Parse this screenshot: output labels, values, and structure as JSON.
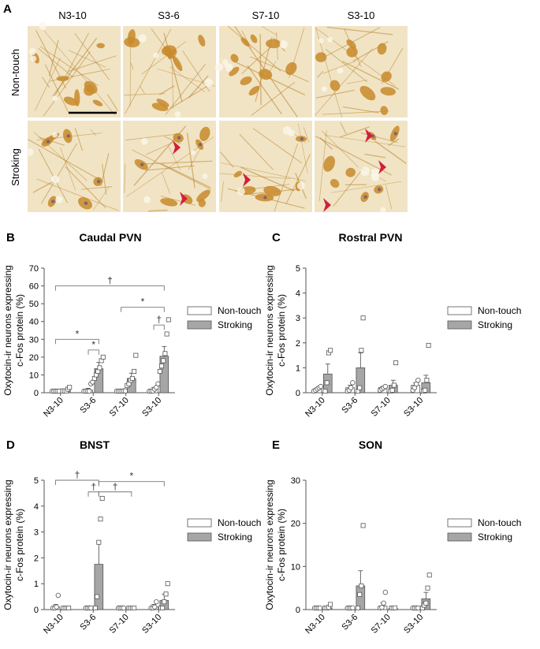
{
  "panel_a": {
    "letter": "A",
    "columns": [
      "N3-10",
      "S3-6",
      "S7-10",
      "S3-10"
    ],
    "rows": [
      "Non-touch",
      "Stroking"
    ]
  },
  "legend_labels": [
    "Non-touch",
    "Stroking"
  ],
  "colors": {
    "bar_nontouch": "#ffffff",
    "bar_stroking": "#a6a6a6",
    "axis": "#555555",
    "arrowhead": "#d0203a",
    "tissue": "#f1e4c4",
    "cell": "#c8892c"
  },
  "chart_data": [
    {
      "letter": "B",
      "type": "bar",
      "title": "Caudal PVN",
      "ylabel": "Oxytocin-ir neurons expressing c-Fos protein (%)",
      "ylim": [
        0,
        70
      ],
      "yticks": [
        0,
        10,
        20,
        30,
        40,
        50,
        60,
        70
      ],
      "categories": [
        "N3-10",
        "S3-6",
        "S7-10",
        "S3-10"
      ],
      "series": [
        {
          "name": "Non-touch",
          "values": [
            0.3,
            1.5,
            0.5,
            2.0
          ],
          "sem": [
            0.3,
            1.0,
            0.5,
            1.0
          ]
        },
        {
          "name": "Stroking",
          "values": [
            1.5,
            13.5,
            8.0,
            20.5
          ],
          "sem": [
            0.5,
            3.5,
            3.0,
            5.5
          ]
        }
      ],
      "points": [
        [
          [
            0,
            0,
            0,
            0,
            0
          ],
          [
            0,
            0,
            0,
            0,
            5,
            6
          ],
          [
            0,
            0,
            0,
            0,
            1,
            1
          ],
          [
            0,
            0,
            1,
            2,
            3,
            5
          ]
        ],
        [
          [
            1,
            1,
            1,
            2,
            3
          ],
          [
            8,
            10,
            12,
            14,
            18,
            20
          ],
          [
            4,
            5,
            7,
            8,
            12,
            21
          ],
          [
            12,
            15,
            18,
            22,
            33,
            41
          ]
        ]
      ],
      "sig": [
        {
          "from": [
            0,
            0
          ],
          "to": [
            3,
            1
          ],
          "label": "†",
          "y": 60
        },
        {
          "from": [
            0,
            0
          ],
          "to": [
            1,
            1
          ],
          "label": "*",
          "y": 30
        },
        {
          "from": [
            1,
            0
          ],
          "to": [
            1,
            1
          ],
          "label": "*",
          "y": 24
        },
        {
          "from": [
            2,
            0
          ],
          "to": [
            3,
            1
          ],
          "label": "*",
          "y": 48
        },
        {
          "from": [
            3,
            0
          ],
          "to": [
            3,
            1
          ],
          "label": "†",
          "y": 38
        }
      ]
    },
    {
      "letter": "C",
      "type": "bar",
      "title": "Rostral PVN",
      "ylabel": "Oxytocin-ir neurons expressing c-Fos protein (%)",
      "ylim": [
        0,
        5
      ],
      "yticks": [
        0,
        1,
        2,
        3,
        4,
        5
      ],
      "categories": [
        "N3-10",
        "S3-6",
        "S7-10",
        "S3-10"
      ],
      "series": [
        {
          "name": "Non-touch",
          "values": [
            0.15,
            0.2,
            0.2,
            0.3
          ],
          "sem": [
            0.05,
            0.1,
            0.05,
            0.1
          ]
        },
        {
          "name": "Stroking",
          "values": [
            0.75,
            1.0,
            0.3,
            0.4
          ],
          "sem": [
            0.4,
            0.6,
            0.2,
            0.3
          ]
        }
      ],
      "points": [
        [
          [
            0.05,
            0.1,
            0.15,
            0.2,
            0.25
          ],
          [
            0,
            0.1,
            0.2,
            0.4
          ],
          [
            0.1,
            0.15,
            0.2,
            0.25
          ],
          [
            0.1,
            0.2,
            0.35,
            0.5
          ]
        ],
        [
          [
            0,
            0.4,
            1.6,
            1.7
          ],
          [
            0,
            0.2,
            1.7,
            3.0
          ],
          [
            0,
            0.1,
            0.3,
            1.2
          ],
          [
            0,
            0.1,
            0.5,
            1.9
          ]
        ]
      ],
      "sig": []
    },
    {
      "letter": "D",
      "type": "bar",
      "title": "BNST",
      "ylabel": "Oxytocin-ir neurons expressing c-Fos protein (%)",
      "ylim": [
        0,
        5
      ],
      "yticks": [
        0,
        1,
        2,
        3,
        4,
        5
      ],
      "categories": [
        "N3-10",
        "S3-6",
        "S7-10",
        "S3-10"
      ],
      "series": [
        {
          "name": "Non-touch",
          "values": [
            0.1,
            0.02,
            0.02,
            0.1
          ],
          "sem": [
            0.1,
            0.02,
            0.02,
            0.1
          ]
        },
        {
          "name": "Stroking",
          "values": [
            0.02,
            1.75,
            0.02,
            0.35
          ],
          "sem": [
            0.02,
            0.85,
            0.02,
            0.25
          ]
        }
      ],
      "points": [
        [
          [
            0,
            0,
            0.1,
            0.55
          ],
          [
            0,
            0,
            0,
            0
          ],
          [
            0,
            0,
            0,
            0
          ],
          [
            0,
            0,
            0.1,
            0.3
          ]
        ],
        [
          [
            0,
            0,
            0,
            0
          ],
          [
            0,
            0.5,
            2.6,
            3.5,
            4.3
          ],
          [
            0,
            0,
            0,
            0
          ],
          [
            0,
            0,
            0.3,
            0.6,
            1.0
          ]
        ]
      ],
      "sig": [
        {
          "from": [
            0,
            0
          ],
          "to": [
            1,
            1
          ],
          "label": "†",
          "y": 5.0
        },
        {
          "from": [
            1,
            0
          ],
          "to": [
            1,
            1
          ],
          "label": "†",
          "y": 4.55
        },
        {
          "from": [
            1,
            1
          ],
          "to": [
            3,
            1
          ],
          "label": "*",
          "y": 4.95
        },
        {
          "from": [
            1,
            1
          ],
          "to": [
            2,
            1
          ],
          "label": "†",
          "y": 4.55
        }
      ]
    },
    {
      "letter": "E",
      "type": "bar",
      "title": "SON",
      "ylabel": "Oxytocin-ir neurons expressing c-Fos protein (%)",
      "ylim": [
        0,
        30
      ],
      "yticks": [
        0,
        10,
        20,
        30
      ],
      "categories": [
        "N3-10",
        "S3-6",
        "S7-10",
        "S3-10"
      ],
      "series": [
        {
          "name": "Non-touch",
          "values": [
            0.1,
            0.2,
            0.8,
            0.1
          ],
          "sem": [
            0.1,
            0.2,
            0.8,
            0.1
          ]
        },
        {
          "name": "Stroking",
          "values": [
            0.4,
            5.5,
            0.3,
            2.5
          ],
          "sem": [
            0.3,
            3.5,
            0.2,
            1.5
          ]
        }
      ],
      "points": [
        [
          [
            0,
            0,
            0,
            0.1
          ],
          [
            0,
            0,
            0.2,
            0.4
          ],
          [
            0,
            0.5,
            1.5,
            4.0
          ],
          [
            0,
            0,
            0.1,
            0.2
          ]
        ],
        [
          [
            0,
            0,
            0.5,
            1.2
          ],
          [
            0,
            3.5,
            5.5,
            19.5
          ],
          [
            0,
            0,
            0.4
          ],
          [
            0,
            1.0,
            1.5,
            5.0,
            8.0
          ]
        ]
      ],
      "sig": []
    }
  ]
}
